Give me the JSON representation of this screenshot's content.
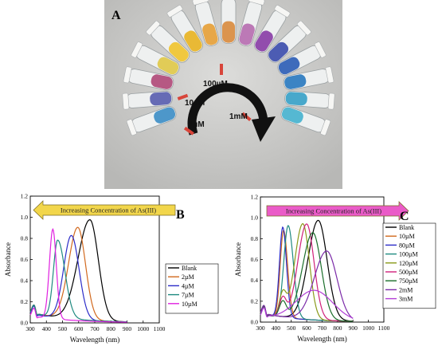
{
  "figure": {
    "panel_a": {
      "letter": "A",
      "labels": [
        "100µM",
        "10µM",
        "1µM",
        "1mM"
      ],
      "colors": {
        "background": "#c9c9c7",
        "tube_glass": "#eef0f0",
        "arrow": "#111111",
        "marker": "#d8453a",
        "liquids": [
          "#3f8fc7",
          "#5a5fb0",
          "#b14b7a",
          "#e0c94a",
          "#f0c430",
          "#e8b425",
          "#e6a13a",
          "#d98c40",
          "#b76fb1",
          "#8a3fa7",
          "#3e4fae",
          "#2f5fb6",
          "#2b7bc0",
          "#3aa2c8",
          "#48b3cf"
        ]
      }
    }
  },
  "chart_data": [
    {
      "type": "line",
      "panel": "B",
      "banner": "Increasing Concentration of As(III)",
      "banner_direction": "left",
      "banner_color": "#f2d64b",
      "xlabel": "Wavelength (nm)",
      "ylabel": "Absorbance",
      "xlim": [
        300,
        1100
      ],
      "ylim": [
        0.0,
        1.2
      ],
      "xticks": [
        300,
        400,
        500,
        600,
        700,
        800,
        900,
        1000,
        1100
      ],
      "yticks": [
        0.0,
        0.2,
        0.4,
        0.6,
        0.8,
        1.0,
        1.2
      ],
      "legend_position": "bottom-right",
      "series": [
        {
          "name": "Blank",
          "color": "#000000",
          "peak": 670,
          "amp": 0.97,
          "wL": 155,
          "wR": 110,
          "floor": 0.09,
          "uv": 0.08,
          "shoulder_x": 0,
          "shoulder_amp": 0
        },
        {
          "name": "2µM",
          "color": "#d2691e",
          "peak": 595,
          "amp": 0.89,
          "wL": 120,
          "wR": 100,
          "floor": 0.09,
          "uv": 0.08,
          "shoulder_x": 0,
          "shoulder_amp": 0
        },
        {
          "name": "4µM",
          "color": "#2c2cc8",
          "peak": 555,
          "amp": 0.81,
          "wL": 100,
          "wR": 100,
          "floor": 0.08,
          "uv": 0.08,
          "shoulder_x": 0,
          "shoulder_amp": 0
        },
        {
          "name": "7µM",
          "color": "#1f8a80",
          "peak": 470,
          "amp": 0.75,
          "wL": 55,
          "wR": 95,
          "floor": 0.09,
          "uv": 0.08,
          "shoulder_x": 0,
          "shoulder_amp": 0
        },
        {
          "name": "10µM",
          "color": "#e020e0",
          "peak": 440,
          "amp": 0.86,
          "wL": 45,
          "wR": 45,
          "floor": 0.06,
          "uv": 0.08,
          "shoulder_x": 0,
          "shoulder_amp": 0
        }
      ]
    },
    {
      "type": "line",
      "panel": "C",
      "banner": "Increasing Concentration of As(III)",
      "banner_direction": "right",
      "banner_color": "#ea5bc8",
      "xlabel": "Wavelength (nm)",
      "ylabel": "Absorbance",
      "xlim": [
        300,
        1100
      ],
      "ylim": [
        0.0,
        1.2
      ],
      "xticks": [
        300,
        400,
        500,
        600,
        700,
        800,
        900,
        1000,
        1100
      ],
      "yticks": [
        0.0,
        0.2,
        0.4,
        0.6,
        0.8,
        1.0,
        1.2
      ],
      "legend_position": "top-right",
      "series": [
        {
          "name": "Blank",
          "color": "#000000",
          "peak": 675,
          "amp": 0.97,
          "wL": 140,
          "wR": 120,
          "floor": 0.08,
          "uv": 0.08,
          "shoulder_x": 0,
          "shoulder_amp": 0
        },
        {
          "name": "10µM",
          "color": "#d2691e",
          "peak": 450,
          "amp": 0.85,
          "wL": 45,
          "wR": 55,
          "floor": 0.07,
          "uv": 0.08,
          "shoulder_x": 0,
          "shoulder_amp": 0
        },
        {
          "name": "80µM",
          "color": "#2c2cc8",
          "peak": 445,
          "amp": 0.88,
          "wL": 45,
          "wR": 50,
          "floor": 0.07,
          "uv": 0.08,
          "shoulder_x": 0,
          "shoulder_amp": 0
        },
        {
          "name": "100µM",
          "color": "#1f8a80",
          "peak": 480,
          "amp": 0.9,
          "wL": 60,
          "wR": 70,
          "floor": 0.07,
          "uv": 0.08,
          "shoulder_x": 0,
          "shoulder_amp": 0
        },
        {
          "name": "120µM",
          "color": "#8a9a1a",
          "peak": 575,
          "amp": 0.93,
          "wL": 110,
          "wR": 90,
          "floor": 0.07,
          "uv": 0.08,
          "shoulder_x": 445,
          "shoulder_amp": 0.22
        },
        {
          "name": "500µM",
          "color": "#d0207a",
          "peak": 600,
          "amp": 0.93,
          "wL": 120,
          "wR": 100,
          "floor": 0.07,
          "uv": 0.08,
          "shoulder_x": 445,
          "shoulder_amp": 0.18
        },
        {
          "name": "750µM",
          "color": "#1a6e2a",
          "peak": 640,
          "amp": 0.85,
          "wL": 140,
          "wR": 115,
          "floor": 0.07,
          "uv": 0.08,
          "shoulder_x": 445,
          "shoulder_amp": 0.15
        },
        {
          "name": "2mM",
          "color": "#7b2aa8",
          "peak": 730,
          "amp": 0.68,
          "wL": 170,
          "wR": 140,
          "floor": 0.08,
          "uv": 0.08,
          "shoulder_x": 0,
          "shoulder_amp": 0
        },
        {
          "name": "3mM",
          "color": "#b23fd6",
          "peak": 650,
          "amp": 0.3,
          "wL": 250,
          "wR": 250,
          "floor": 0.05,
          "uv": 0.08,
          "shoulder_x": 0,
          "shoulder_amp": 0
        }
      ]
    }
  ]
}
